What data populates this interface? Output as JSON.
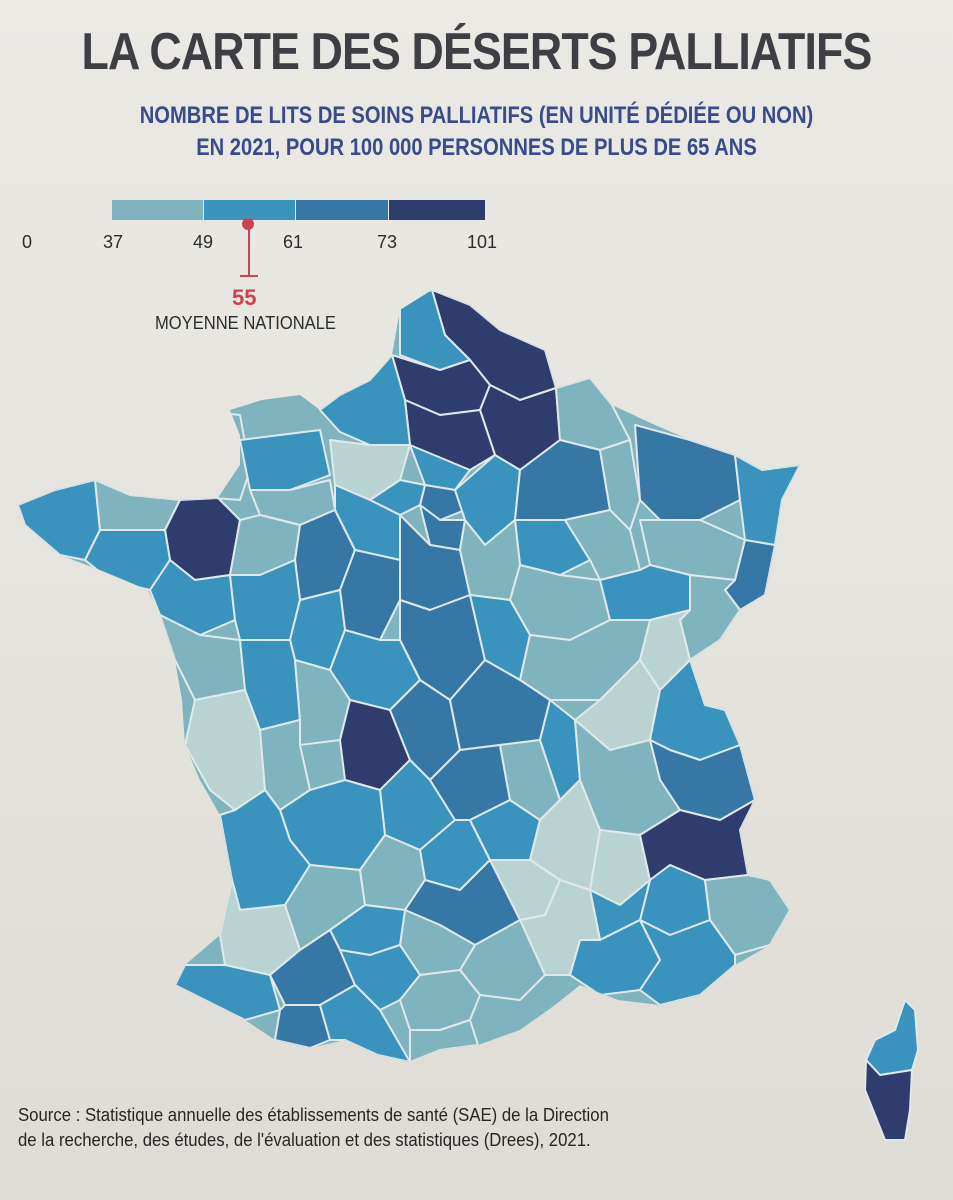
{
  "title": "LA CARTE DES DÉSERTS PALLIATIFS",
  "subtitle_line1": "NOMBRE DE LITS DE SOINS PALLIATIFS (EN UNITÉ DÉDIÉE OU NON)",
  "subtitle_line2": "EN 2021, POUR 100 000 PERSONNES DE PLUS DE 65 ANS",
  "legend": {
    "ticks": [
      "0",
      "37",
      "49",
      "61",
      "73",
      "101"
    ],
    "classes": [
      {
        "from": 37,
        "to": 49,
        "color": "#7fb3bd"
      },
      {
        "from": 49,
        "to": 61,
        "color": "#3a93bd"
      },
      {
        "from": 61,
        "to": 73,
        "color": "#3677a6"
      },
      {
        "from": 73,
        "to": 101,
        "color": "#2e3c6e"
      }
    ],
    "low_color": "#b9d3d2",
    "national_average_value": "55",
    "national_average_label": "MOYENNE NATIONALE"
  },
  "source_line1": "Source : Statistique annuelle des établissements de santé (SAE) de la Direction",
  "source_line2": "de la recherche, des études, de l'évaluation et des statistiques (Drees), 2021."
}
